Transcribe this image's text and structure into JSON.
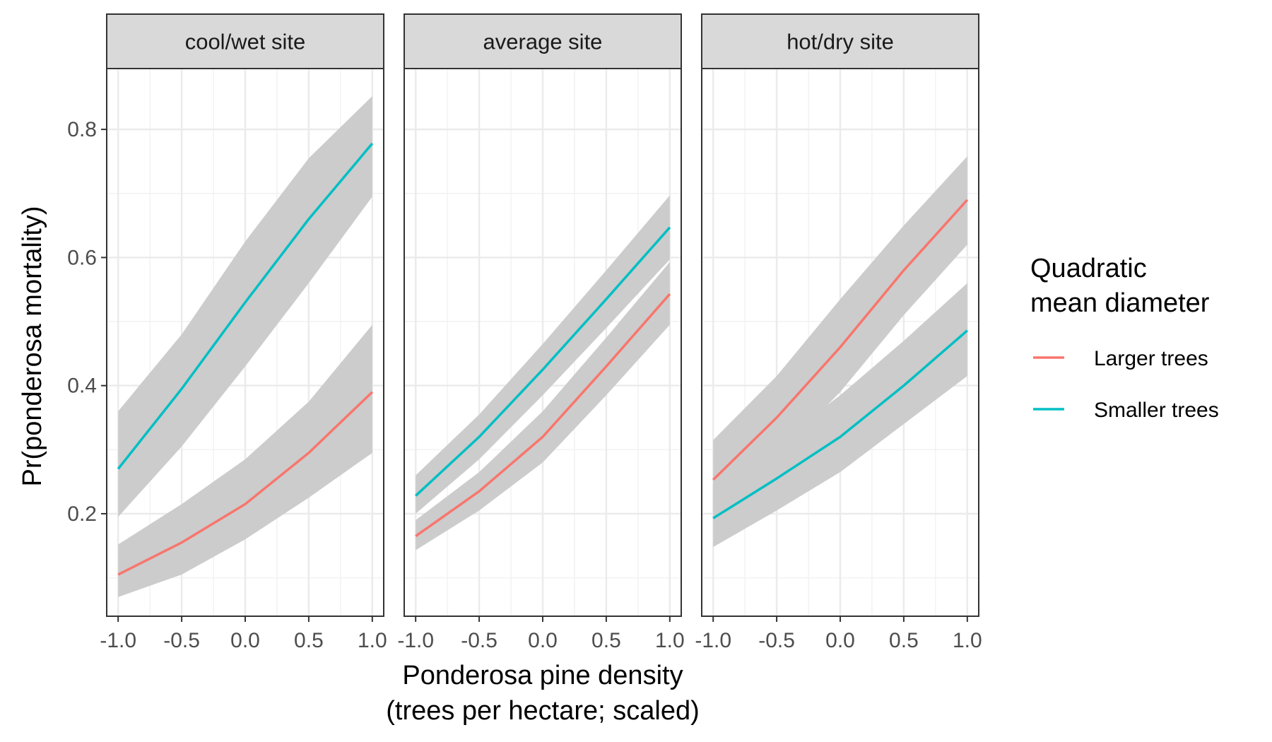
{
  "chart_data": {
    "type": "line",
    "facets": [
      {
        "name": "cool/wet site",
        "series": [
          {
            "name": "Larger trees",
            "x": [
              -1.0,
              -0.5,
              0.0,
              0.5,
              1.0
            ],
            "y": [
              0.105,
              0.155,
              0.215,
              0.295,
              0.39
            ],
            "lower": [
              0.07,
              0.105,
              0.16,
              0.225,
              0.295
            ],
            "upper": [
              0.152,
              0.215,
              0.285,
              0.375,
              0.495
            ]
          },
          {
            "name": "Smaller trees",
            "x": [
              -1.0,
              -0.5,
              0.0,
              0.5,
              1.0
            ],
            "y": [
              0.27,
              0.395,
              0.53,
              0.66,
              0.778
            ],
            "lower": [
              0.195,
              0.305,
              0.43,
              0.56,
              0.695
            ],
            "upper": [
              0.36,
              0.48,
              0.625,
              0.755,
              0.852
            ]
          }
        ]
      },
      {
        "name": "average site",
        "series": [
          {
            "name": "Larger trees",
            "x": [
              -1.0,
              -0.5,
              0.0,
              0.5,
              1.0
            ],
            "y": [
              0.165,
              0.235,
              0.32,
              0.43,
              0.543
            ],
            "lower": [
              0.143,
              0.205,
              0.28,
              0.385,
              0.495
            ],
            "upper": [
              0.19,
              0.265,
              0.36,
              0.475,
              0.593
            ]
          },
          {
            "name": "Smaller trees",
            "x": [
              -1.0,
              -0.5,
              0.0,
              0.5,
              1.0
            ],
            "y": [
              0.228,
              0.32,
              0.425,
              0.535,
              0.647
            ],
            "lower": [
              0.2,
              0.285,
              0.385,
              0.49,
              0.597
            ],
            "upper": [
              0.26,
              0.355,
              0.465,
              0.58,
              0.697
            ]
          }
        ]
      },
      {
        "name": "hot/dry site",
        "series": [
          {
            "name": "Larger trees",
            "x": [
              -1.0,
              -0.5,
              0.0,
              0.5,
              1.0
            ],
            "y": [
              0.253,
              0.35,
              0.46,
              0.58,
              0.69
            ],
            "lower": [
              0.205,
              0.29,
              0.39,
              0.51,
              0.62
            ],
            "upper": [
              0.315,
              0.415,
              0.535,
              0.65,
              0.758
            ]
          },
          {
            "name": "Smaller trees",
            "x": [
              -1.0,
              -0.5,
              0.0,
              0.5,
              1.0
            ],
            "y": [
              0.193,
              0.255,
              0.32,
              0.4,
              0.486
            ],
            "lower": [
              0.148,
              0.205,
              0.265,
              0.34,
              0.415
            ],
            "upper": [
              0.245,
              0.31,
              0.385,
              0.47,
              0.56
            ]
          }
        ]
      }
    ],
    "xlabel": [
      "Ponderosa pine density",
      "(trees per hectare; scaled)"
    ],
    "ylabel": "Pr(ponderosa mortality)",
    "xlim": [
      -1.09,
      1.09
    ],
    "ylim": [
      0.04,
      0.895
    ],
    "x_ticks": [
      -1.0,
      -0.5,
      0.0,
      0.5,
      1.0
    ],
    "x_tick_labels": [
      "-1.0",
      "-0.5",
      "0.0",
      "0.5",
      "1.0"
    ],
    "y_ticks": [
      0.2,
      0.4,
      0.6,
      0.8
    ],
    "y_tick_labels": [
      "0.2",
      "0.4",
      "0.6",
      "0.8"
    ],
    "legend": {
      "title": [
        "Quadratic",
        "mean diameter"
      ],
      "position": "right",
      "entries": [
        {
          "label": "Larger trees",
          "color": "#F8766D"
        },
        {
          "label": "Smaller trees",
          "color": "#00BFC4"
        }
      ]
    },
    "ribbon_color": "#cccccc",
    "grid": true
  }
}
